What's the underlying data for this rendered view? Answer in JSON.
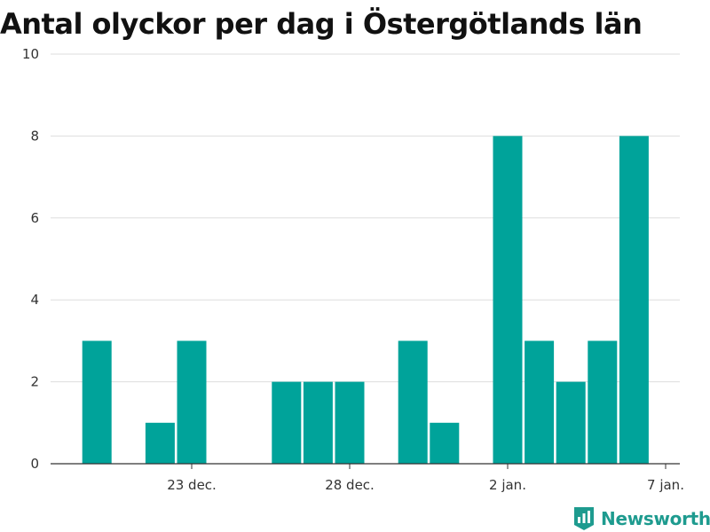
{
  "chart_data": {
    "type": "bar",
    "title": "Antal olyckor per dag i Östergötlands län",
    "xlabel": "",
    "ylabel": "",
    "ylim": [
      0,
      10
    ],
    "yticks": [
      0,
      2,
      4,
      6,
      8,
      10
    ],
    "x_ticks": [
      {
        "label": "23 dec.",
        "date": "2023-12-23"
      },
      {
        "label": "28 dec.",
        "date": "2023-12-28"
      },
      {
        "label": "2 jan.",
        "date": "2024-01-02"
      },
      {
        "label": "7 jan.",
        "date": "2024-01-07"
      }
    ],
    "series": [
      {
        "color": "#00a39a",
        "points": [
          {
            "date": "2023-12-20",
            "value": 3
          },
          {
            "date": "2023-12-21",
            "value": 0
          },
          {
            "date": "2023-12-22",
            "value": 1
          },
          {
            "date": "2023-12-23",
            "value": 3
          },
          {
            "date": "2023-12-24",
            "value": 0
          },
          {
            "date": "2023-12-25",
            "value": 0
          },
          {
            "date": "2023-12-26",
            "value": 2
          },
          {
            "date": "2023-12-27",
            "value": 2
          },
          {
            "date": "2023-12-28",
            "value": 2
          },
          {
            "date": "2023-12-29",
            "value": 0
          },
          {
            "date": "2023-12-30",
            "value": 3
          },
          {
            "date": "2023-12-31",
            "value": 1
          },
          {
            "date": "2024-01-01",
            "value": 0
          },
          {
            "date": "2024-01-02",
            "value": 8
          },
          {
            "date": "2024-01-03",
            "value": 3
          },
          {
            "date": "2024-01-04",
            "value": 2
          },
          {
            "date": "2024-01-05",
            "value": 3
          },
          {
            "date": "2024-01-06",
            "value": 8
          }
        ]
      }
    ],
    "grid": true,
    "legend": "none"
  },
  "brand": {
    "name": "Newsworthy",
    "icon": "newsworthy-logo-icon",
    "color": "#1e9b8f"
  }
}
